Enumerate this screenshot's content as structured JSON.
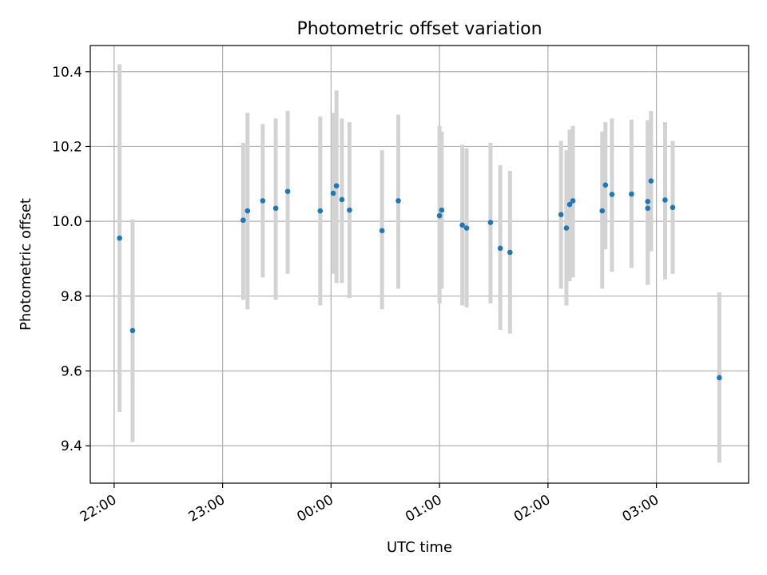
{
  "chart_data": {
    "type": "scatter",
    "title": "Photometric offset variation",
    "xlabel": "UTC time",
    "ylabel": "Photometric offset",
    "x_axis": {
      "unit": "hours since 22:00 UTC",
      "range": [
        -0.22,
        5.85
      ],
      "ticks": [
        {
          "x": 0,
          "label": "22:00"
        },
        {
          "x": 1,
          "label": "23:00"
        },
        {
          "x": 2,
          "label": "00:00"
        },
        {
          "x": 3,
          "label": "01:00"
        },
        {
          "x": 4,
          "label": "02:00"
        },
        {
          "x": 5,
          "label": "03:00"
        }
      ]
    },
    "y_axis": {
      "range": [
        9.3,
        10.47
      ],
      "ticks": [
        9.4,
        9.6,
        9.8,
        10.0,
        10.2,
        10.4
      ],
      "tick_labels": [
        "9.4",
        "9.6",
        "9.8",
        "10.0",
        "10.2",
        "10.4"
      ]
    },
    "grid": true,
    "colors": {
      "point": "#1f77b4",
      "errorbar": "#d3d3d3",
      "grid": "#b0b0b0"
    },
    "points": [
      {
        "x": 0.05,
        "y": 9.955,
        "lo": 9.49,
        "hi": 10.42
      },
      {
        "x": 0.17,
        "y": 9.708,
        "lo": 9.41,
        "hi": 10.005
      },
      {
        "x": 1.19,
        "y": 10.003,
        "lo": 9.79,
        "hi": 10.21
      },
      {
        "x": 1.23,
        "y": 10.028,
        "lo": 9.765,
        "hi": 10.29
      },
      {
        "x": 1.37,
        "y": 10.055,
        "lo": 9.85,
        "hi": 10.26
      },
      {
        "x": 1.49,
        "y": 10.035,
        "lo": 9.79,
        "hi": 10.275
      },
      {
        "x": 1.6,
        "y": 10.08,
        "lo": 9.86,
        "hi": 10.295
      },
      {
        "x": 1.9,
        "y": 10.028,
        "lo": 9.775,
        "hi": 10.28
      },
      {
        "x": 2.02,
        "y": 10.075,
        "lo": 9.86,
        "hi": 10.29
      },
      {
        "x": 2.05,
        "y": 10.095,
        "lo": 9.835,
        "hi": 10.35
      },
      {
        "x": 2.1,
        "y": 10.058,
        "lo": 9.835,
        "hi": 10.275
      },
      {
        "x": 2.17,
        "y": 10.03,
        "lo": 9.795,
        "hi": 10.265
      },
      {
        "x": 2.47,
        "y": 9.975,
        "lo": 9.765,
        "hi": 10.19
      },
      {
        "x": 2.62,
        "y": 10.055,
        "lo": 9.82,
        "hi": 10.285
      },
      {
        "x": 3.0,
        "y": 10.015,
        "lo": 9.78,
        "hi": 10.255
      },
      {
        "x": 3.02,
        "y": 10.03,
        "lo": 9.82,
        "hi": 10.24
      },
      {
        "x": 3.21,
        "y": 9.99,
        "lo": 9.775,
        "hi": 10.205
      },
      {
        "x": 3.25,
        "y": 9.982,
        "lo": 9.77,
        "hi": 10.195
      },
      {
        "x": 3.47,
        "y": 9.997,
        "lo": 9.78,
        "hi": 10.21
      },
      {
        "x": 3.56,
        "y": 9.928,
        "lo": 9.71,
        "hi": 10.15
      },
      {
        "x": 3.65,
        "y": 9.917,
        "lo": 9.7,
        "hi": 10.135
      },
      {
        "x": 4.12,
        "y": 10.018,
        "lo": 9.82,
        "hi": 10.215
      },
      {
        "x": 4.17,
        "y": 9.982,
        "lo": 9.775,
        "hi": 10.19
      },
      {
        "x": 4.2,
        "y": 10.045,
        "lo": 9.84,
        "hi": 10.245
      },
      {
        "x": 4.23,
        "y": 10.055,
        "lo": 9.85,
        "hi": 10.255
      },
      {
        "x": 4.5,
        "y": 10.028,
        "lo": 9.82,
        "hi": 10.24
      },
      {
        "x": 4.53,
        "y": 10.097,
        "lo": 9.925,
        "hi": 10.265
      },
      {
        "x": 4.59,
        "y": 10.072,
        "lo": 9.865,
        "hi": 10.275
      },
      {
        "x": 4.77,
        "y": 10.073,
        "lo": 9.875,
        "hi": 10.272
      },
      {
        "x": 4.92,
        "y": 10.053,
        "lo": 9.83,
        "hi": 10.27
      },
      {
        "x": 4.92,
        "y": 10.035,
        "lo": 9.835,
        "hi": 10.27
      },
      {
        "x": 4.95,
        "y": 10.108,
        "lo": 9.92,
        "hi": 10.295
      },
      {
        "x": 5.08,
        "y": 10.057,
        "lo": 9.845,
        "hi": 10.265
      },
      {
        "x": 5.15,
        "y": 10.037,
        "lo": 9.86,
        "hi": 10.215
      },
      {
        "x": 5.58,
        "y": 9.582,
        "lo": 9.355,
        "hi": 9.81
      }
    ]
  }
}
